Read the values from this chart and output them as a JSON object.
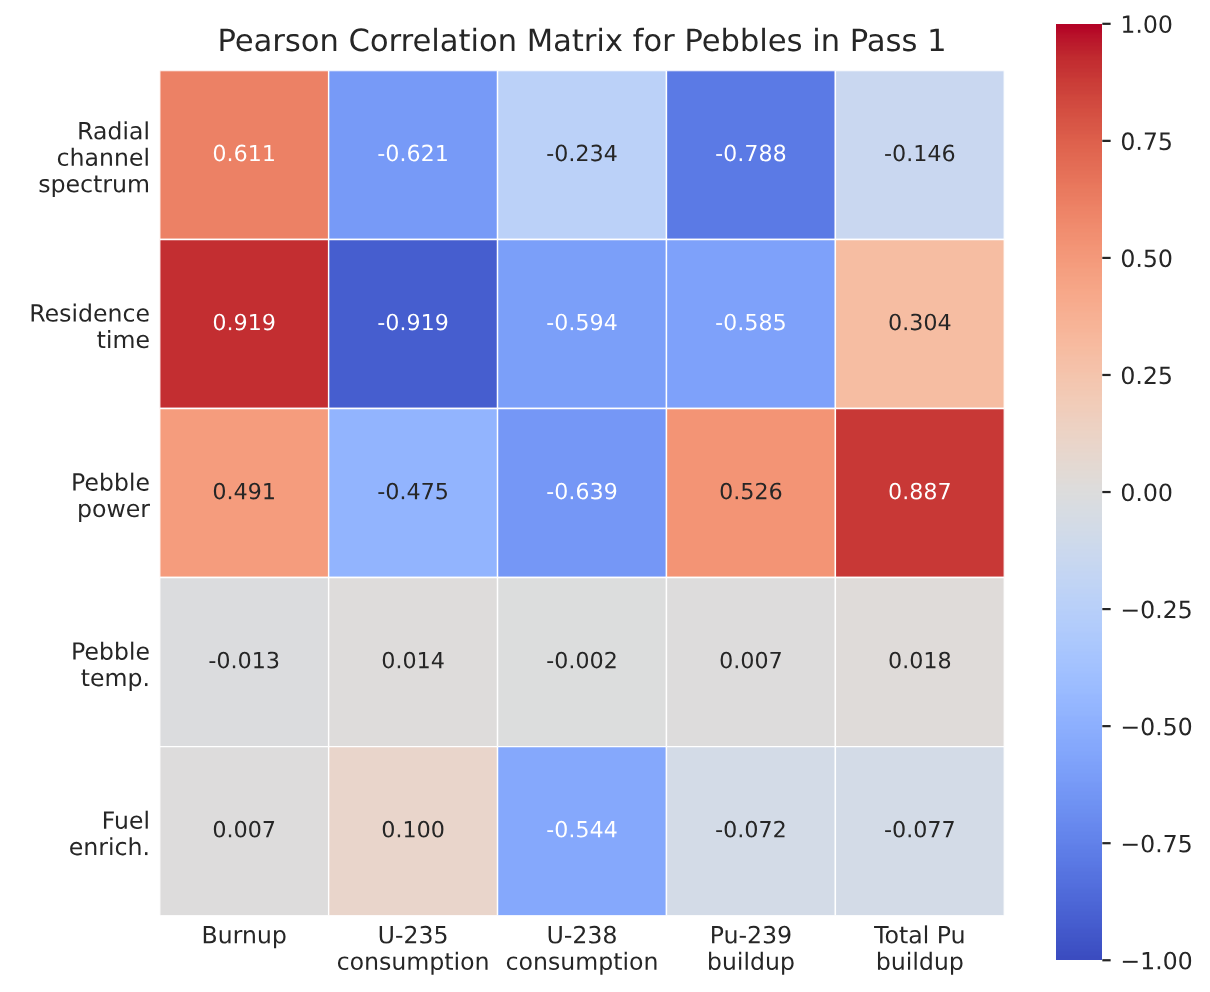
{
  "chart_data": {
    "type": "heatmap",
    "title": "Pearson Correlation Matrix for Pebbles in Pass 1",
    "categories": [
      "Burnup",
      "U-235\nconsumption",
      "U-238\nconsumption",
      "Pu-239\nbuildup",
      "Total Pu\nbuildup"
    ],
    "y_categories": [
      "Radial\nchannel\nspectrum",
      "Residence\ntime",
      "Pebble\npower",
      "Pebble\ntemp.",
      "Fuel\nenrich."
    ],
    "cells": [
      [
        0.611,
        -0.621,
        -0.234,
        -0.788,
        -0.146
      ],
      [
        0.919,
        -0.919,
        -0.594,
        -0.585,
        0.304
      ],
      [
        0.491,
        -0.475,
        -0.639,
        0.526,
        0.887
      ],
      [
        -0.013,
        0.014,
        -0.002,
        0.007,
        0.018
      ],
      [
        0.007,
        0.1,
        -0.544,
        -0.072,
        -0.077
      ]
    ],
    "cell_labels": [
      [
        "0.611",
        "-0.621",
        "-0.234",
        "-0.788",
        "-0.146"
      ],
      [
        "0.919",
        "-0.919",
        "-0.594",
        "-0.585",
        "0.304"
      ],
      [
        "0.491",
        "-0.475",
        "-0.639",
        "0.526",
        "0.887"
      ],
      [
        "-0.013",
        "0.014",
        "-0.002",
        "0.007",
        "0.018"
      ],
      [
        "0.007",
        "0.100",
        "-0.544",
        "-0.072",
        "-0.077"
      ]
    ],
    "clim": [
      -1,
      1
    ],
    "cticks": [
      {
        "value": -1,
        "label": "−1.00"
      },
      {
        "value": -0.75,
        "label": "−0.75"
      },
      {
        "value": -0.5,
        "label": "−0.50"
      },
      {
        "value": -0.25,
        "label": "−0.25"
      },
      {
        "value": 0,
        "label": "0.00"
      },
      {
        "value": 0.25,
        "label": "0.25"
      },
      {
        "value": 0.5,
        "label": "0.50"
      },
      {
        "value": 0.75,
        "label": "0.75"
      },
      {
        "value": 1,
        "label": "1.00"
      }
    ]
  }
}
